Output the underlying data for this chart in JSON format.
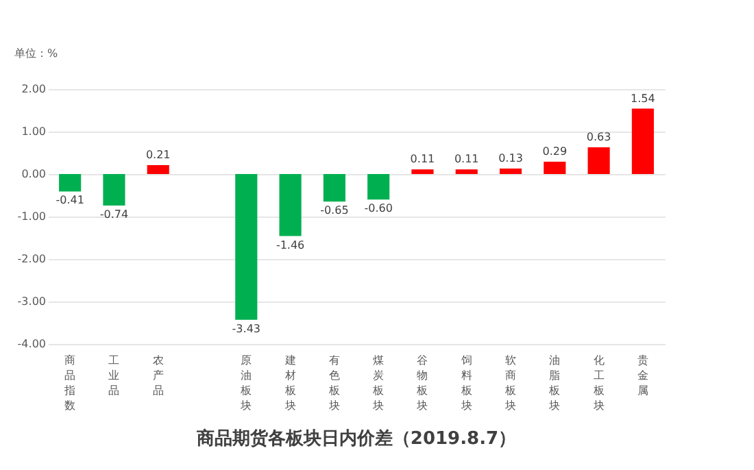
{
  "chart_data": {
    "type": "bar",
    "title": "商品期货各板块日内价差（2019.8.7）",
    "ylabel": "单位：%",
    "categories": [
      "商品指数",
      "工业品",
      "农产品",
      null,
      "原油板块",
      "建材板块",
      "有色板块",
      "煤炭板块",
      "谷物板块",
      "饲料板块",
      "软商板块",
      "油脂板块",
      "化工板块",
      "贵金属"
    ],
    "values": [
      -0.41,
      -0.74,
      0.21,
      null,
      -3.43,
      -1.46,
      -0.65,
      -0.6,
      0.11,
      0.11,
      0.13,
      0.29,
      0.63,
      1.54
    ],
    "colors": [
      "#00b050",
      "#00b050",
      "#ff0000",
      null,
      "#00b050",
      "#00b050",
      "#00b050",
      "#00b050",
      "#ff0000",
      "#ff0000",
      "#ff0000",
      "#ff0000",
      "#ff0000",
      "#ff0000"
    ],
    "value_labels": [
      "-0.41",
      "-0.74",
      "0.21",
      null,
      "-3.43",
      "-1.46",
      "-0.65",
      "-0.60",
      "0.11",
      "0.11",
      "0.13",
      "0.29",
      "0.63",
      "1.54"
    ],
    "ylim": [
      -4,
      2
    ],
    "yticks": [
      {
        "value": -4,
        "label": "-4.00"
      },
      {
        "value": -3,
        "label": "-3.00"
      },
      {
        "value": -2,
        "label": "-2.00"
      },
      {
        "value": -1,
        "label": "-1.00"
      },
      {
        "value": 0,
        "label": "0.00"
      },
      {
        "value": 1,
        "label": "1.00"
      },
      {
        "value": 2,
        "label": "2.00"
      }
    ],
    "grid": "y"
  }
}
